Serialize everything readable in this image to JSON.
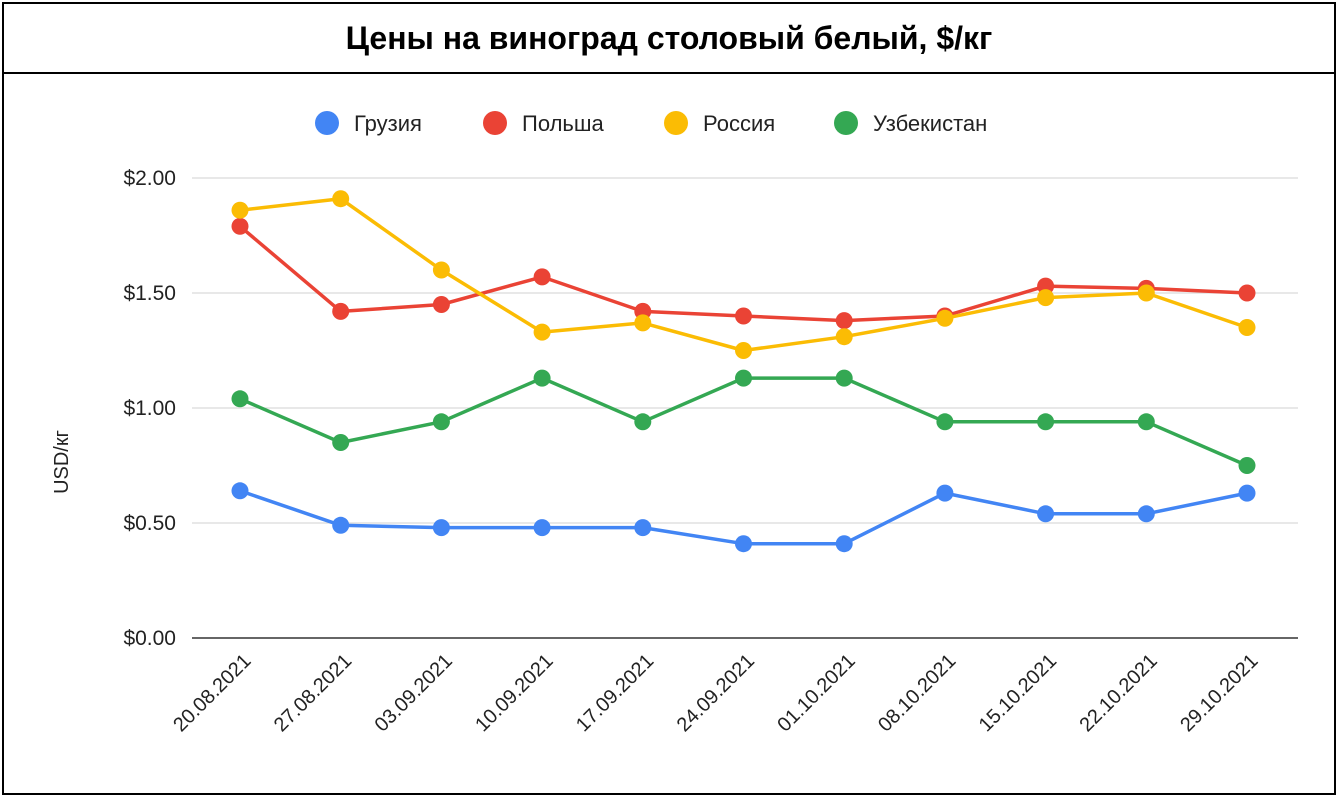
{
  "chart_data": {
    "type": "line",
    "title": "Цены на виноград столовый белый, $/кг",
    "ylabel": "USD/кг",
    "xlabel": "",
    "ylim": [
      0,
      2
    ],
    "yticks": [
      "$0.00",
      "$0.50",
      "$1.00",
      "$1.50",
      "$2.00"
    ],
    "ytick_values": [
      0,
      0.5,
      1.0,
      1.5,
      2.0
    ],
    "grid": true,
    "legend_position": "top",
    "categories": [
      "20.08.2021",
      "27.08.2021",
      "03.09.2021",
      "10.09.2021",
      "17.09.2021",
      "24.09.2021",
      "01.10.2021",
      "08.10.2021",
      "15.10.2021",
      "22.10.2021",
      "29.10.2021"
    ],
    "series": [
      {
        "name": "Грузия",
        "color": "#4285F4",
        "values": [
          0.64,
          0.49,
          0.48,
          0.48,
          0.48,
          0.41,
          0.41,
          0.63,
          0.54,
          0.54,
          0.63
        ]
      },
      {
        "name": "Польша",
        "color": "#EA4335",
        "values": [
          1.79,
          1.42,
          1.45,
          1.57,
          1.42,
          1.4,
          1.38,
          1.4,
          1.53,
          1.52,
          1.5
        ]
      },
      {
        "name": "Россия",
        "color": "#FBBC04",
        "values": [
          1.86,
          1.91,
          1.6,
          1.33,
          1.37,
          1.25,
          1.31,
          1.39,
          1.48,
          1.5,
          1.35
        ]
      },
      {
        "name": "Узбекистан",
        "color": "#34A853",
        "values": [
          1.04,
          0.85,
          0.94,
          1.13,
          0.94,
          1.13,
          1.13,
          0.94,
          0.94,
          0.94,
          0.75
        ]
      }
    ]
  }
}
